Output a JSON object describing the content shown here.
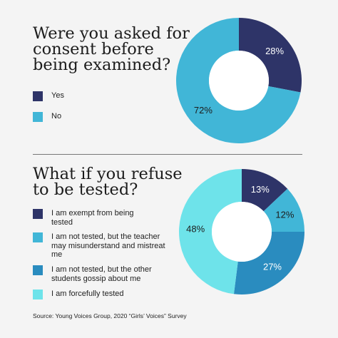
{
  "questions": [
    {
      "title": "Were you asked for consent before being examined?",
      "legend": [
        {
          "label": "Yes",
          "color": "#2e3468"
        },
        {
          "label": "No",
          "color": "#41b6d7"
        }
      ]
    },
    {
      "title": "What if you refuse to be tested?",
      "legend": [
        {
          "label": "I am exempt from being tested",
          "color": "#2e3468"
        },
        {
          "label": "I am not tested, but the teacher may misunderstand and mistreat me",
          "color": "#41b6d7"
        },
        {
          "label": "I am not tested, but the other students gossip about me",
          "color": "#2a8cbf"
        },
        {
          "label": "I am forcefully tested",
          "color": "#6ee3ea"
        }
      ]
    }
  ],
  "source": "Source: Young Voices Group, 2020 “Girls’ Voices” Survey",
  "chart_data": [
    {
      "type": "pie",
      "title": "Were you asked for consent before being examined?",
      "categories": [
        "Yes",
        "No"
      ],
      "values": [
        28,
        72
      ],
      "value_labels": [
        "28%",
        "72%"
      ],
      "colors": [
        "#2e3468",
        "#41b6d7"
      ],
      "label_colors": [
        "#ffffff",
        "#1c1c1c"
      ],
      "donut": true
    },
    {
      "type": "pie",
      "title": "What if you refuse to be tested?",
      "categories": [
        "I am exempt from being tested",
        "I am not tested, but the teacher may misunderstand and mistreat me",
        "I am not tested, but the other students gossip about me",
        "I am forcefully tested"
      ],
      "values": [
        13,
        12,
        27,
        48
      ],
      "value_labels": [
        "13%",
        "12%",
        "27%",
        "48%"
      ],
      "colors": [
        "#2e3468",
        "#41b6d7",
        "#2a8cbf",
        "#6ee3ea"
      ],
      "label_colors": [
        "#ffffff",
        "#1c1c1c",
        "#ffffff",
        "#1c1c1c"
      ],
      "donut": true
    }
  ]
}
